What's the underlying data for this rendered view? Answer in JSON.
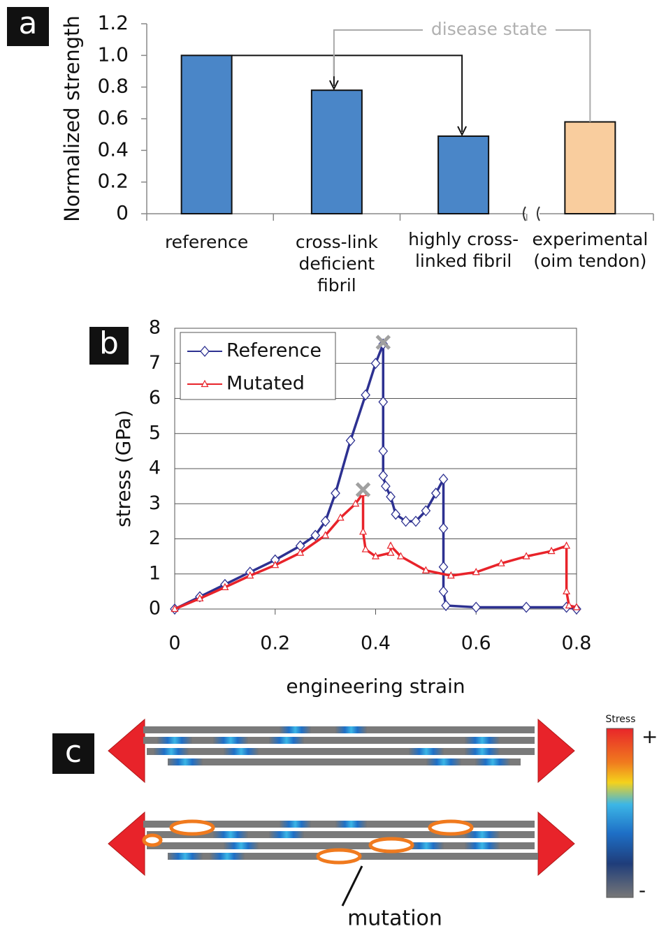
{
  "chart_data": [
    {
      "type": "bar",
      "panel_label": "a",
      "ylabel": "Normalized strength",
      "annotation": "disease state",
      "categories": [
        "reference",
        "cross-link\ndeficient\nfibril",
        "highly cross-\nlinked fibril",
        "experimental\n(oim tendon)"
      ],
      "values": [
        1,
        0.78,
        0.49,
        0.58
      ],
      "colors": [
        "#4a86c8",
        "#4a86c8",
        "#4a86c8",
        "#f9cd9e"
      ],
      "ylim": [
        0,
        1.2
      ],
      "yticks": [
        0,
        0.2,
        0.4,
        0.6,
        0.8,
        {
          "value": 1,
          "label": "1.0"
        },
        1.2
      ]
    },
    {
      "type": "line",
      "panel_label": "b",
      "xlabel": "engineering strain",
      "ylabel": "stress (GPa)",
      "xlim": [
        0,
        0.8
      ],
      "ylim": [
        0,
        8
      ],
      "xticks": [
        0,
        0.2,
        0.4,
        0.6,
        0.8
      ],
      "yticks": [
        0,
        1,
        2,
        3,
        4,
        5,
        6,
        7,
        8
      ],
      "grid": true,
      "legend": "upper left",
      "series": [
        {
          "name": "Reference",
          "color": "#2d3191",
          "marker": "diamond",
          "x": [
            0,
            0.05,
            0.1,
            0.15,
            0.2,
            0.25,
            0.28,
            0.3,
            0.32,
            0.35,
            0.38,
            0.4,
            0.415,
            0.415,
            0.415,
            0.415,
            0.42,
            0.43,
            0.44,
            0.46,
            0.48,
            0.5,
            0.52,
            0.535,
            0.535,
            0.535,
            0.535,
            0.54,
            0.6,
            0.7,
            0.78,
            0.8
          ],
          "values": [
            0,
            0.35,
            0.7,
            1.05,
            1.4,
            1.8,
            2.1,
            2.5,
            3.3,
            4.8,
            6.1,
            7.0,
            7.55,
            5.9,
            4.5,
            3.8,
            3.5,
            3.2,
            2.7,
            2.5,
            2.5,
            2.8,
            3.3,
            3.7,
            2.3,
            1.2,
            0.5,
            0.1,
            0.05,
            0.05,
            0.05,
            0
          ]
        },
        {
          "name": "Mutated",
          "color": "#e8232a",
          "marker": "triangle",
          "x": [
            0,
            0.05,
            0.1,
            0.15,
            0.2,
            0.25,
            0.3,
            0.33,
            0.36,
            0.375,
            0.375,
            0.38,
            0.4,
            0.43,
            0.43,
            0.45,
            0.5,
            0.55,
            0.6,
            0.65,
            0.7,
            0.75,
            0.78,
            0.78,
            0.785,
            0.8
          ],
          "values": [
            0,
            0.3,
            0.62,
            0.95,
            1.25,
            1.6,
            2.1,
            2.6,
            3.0,
            3.3,
            2.2,
            1.7,
            1.5,
            1.6,
            1.8,
            1.5,
            1.1,
            0.95,
            1.05,
            1.3,
            1.5,
            1.65,
            1.8,
            0.5,
            0.1,
            0.05
          ]
        }
      ],
      "failure_markers": {
        "color": "#a0a0a0",
        "x": [
          0.415,
          0.375
        ],
        "y": [
          7.6,
          3.4
        ]
      }
    }
  ],
  "diagram": {
    "label": "c",
    "colorbar_title": "Stress",
    "colorbar_max": "+",
    "colorbar_min": "-",
    "annotation": "mutation"
  }
}
